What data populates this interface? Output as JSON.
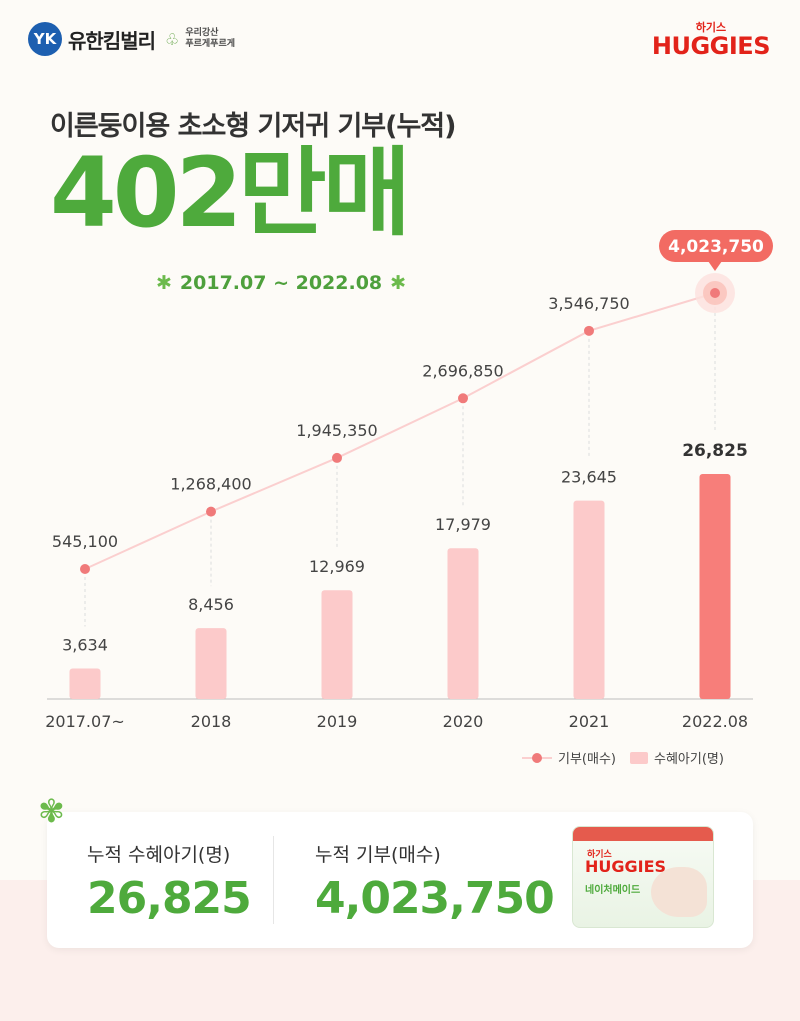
{
  "brand": {
    "logo_mark": "YK",
    "name": "유한킴벌리",
    "slogan_line1": "우리강산",
    "slogan_line2": "푸르게푸르게",
    "tree_icon": "tree-icon"
  },
  "huggies": {
    "sub": "하기스",
    "main": "HUGGIES"
  },
  "subtitle": "이른둥이용 초소형 기저귀 기부(누적)",
  "headline": "402만매",
  "period": {
    "star": "✱",
    "text": "2017.07 ~ 2022.08"
  },
  "legend": {
    "line_label": "기부(매수)",
    "bar_label": "수혜아기(명)"
  },
  "summary": {
    "babies_label": "누적 수혜아기(명)",
    "babies_value": "26,825",
    "donation_label": "누적 기부(매수)",
    "donation_value": "4,023,750",
    "pack_sub": "하기스",
    "pack_brand": "HUGGIES",
    "pack_line": "네이처메이드"
  },
  "colors": {
    "green": "#4eaa3c",
    "bar": "#fccaca",
    "bar_highlight": "#f77e7a",
    "line": "#fbcfcf",
    "point": "#f07a7a",
    "callout": "#f26b63"
  },
  "chart_data": {
    "type": "bar",
    "categories": [
      "2017.07~",
      "2018",
      "2019",
      "2020",
      "2021",
      "2022.08"
    ],
    "series": [
      {
        "name": "수혜아기(명)",
        "type": "bar",
        "values": [
          3634,
          8456,
          12969,
          17979,
          23645,
          26825
        ],
        "labels": [
          "3,634",
          "8,456",
          "12,969",
          "17,979",
          "23,645",
          "26,825"
        ]
      },
      {
        "name": "기부(매수)",
        "type": "line",
        "values": [
          545100,
          1268400,
          1945350,
          2696850,
          3546750,
          4023750
        ],
        "labels": [
          "545,100",
          "1,268,400",
          "1,945,350",
          "2,696,850",
          "3,546,750",
          "4,023,750"
        ]
      }
    ],
    "highlight_label": "4,023,750",
    "legend_position": "bottom-right",
    "grid": false
  }
}
